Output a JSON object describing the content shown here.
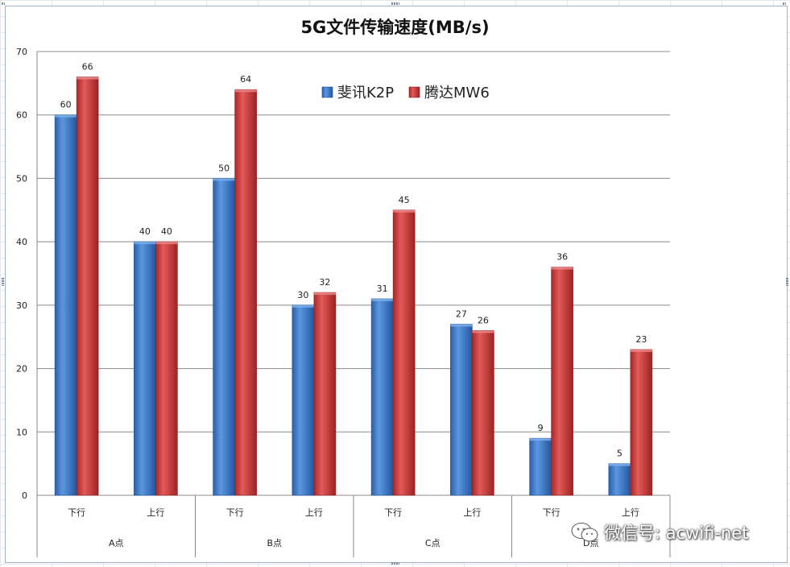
{
  "chart_data": {
    "type": "bar",
    "title": "5G文件传输速度(MB/s)",
    "categories": [
      {
        "group": "A点",
        "label": "下行"
      },
      {
        "group": "A点",
        "label": "上行"
      },
      {
        "group": "B点",
        "label": "下行"
      },
      {
        "group": "B点",
        "label": "上行"
      },
      {
        "group": "C点",
        "label": "下行"
      },
      {
        "group": "C点",
        "label": "上行"
      },
      {
        "group": "D点",
        "label": "下行"
      },
      {
        "group": "D点",
        "label": "上行"
      }
    ],
    "groups": [
      "A点",
      "B点",
      "C点",
      "D点"
    ],
    "series": [
      {
        "name": "斐讯K2P",
        "color": "#3a78c8",
        "values": [
          60,
          40,
          50,
          30,
          31,
          27,
          9,
          5
        ]
      },
      {
        "name": "腾达MW6",
        "color": "#d03a3a",
        "values": [
          66,
          40,
          64,
          32,
          45,
          26,
          36,
          23
        ]
      }
    ],
    "ylim": [
      0,
      70
    ],
    "yticks": [
      0,
      10,
      20,
      30,
      40,
      50,
      60,
      70
    ],
    "grid": true,
    "legend_position": "top-center",
    "xlabel": "",
    "ylabel": ""
  },
  "watermark": {
    "text": "微信号: acwifi-net",
    "icon": "wechat-icon"
  }
}
